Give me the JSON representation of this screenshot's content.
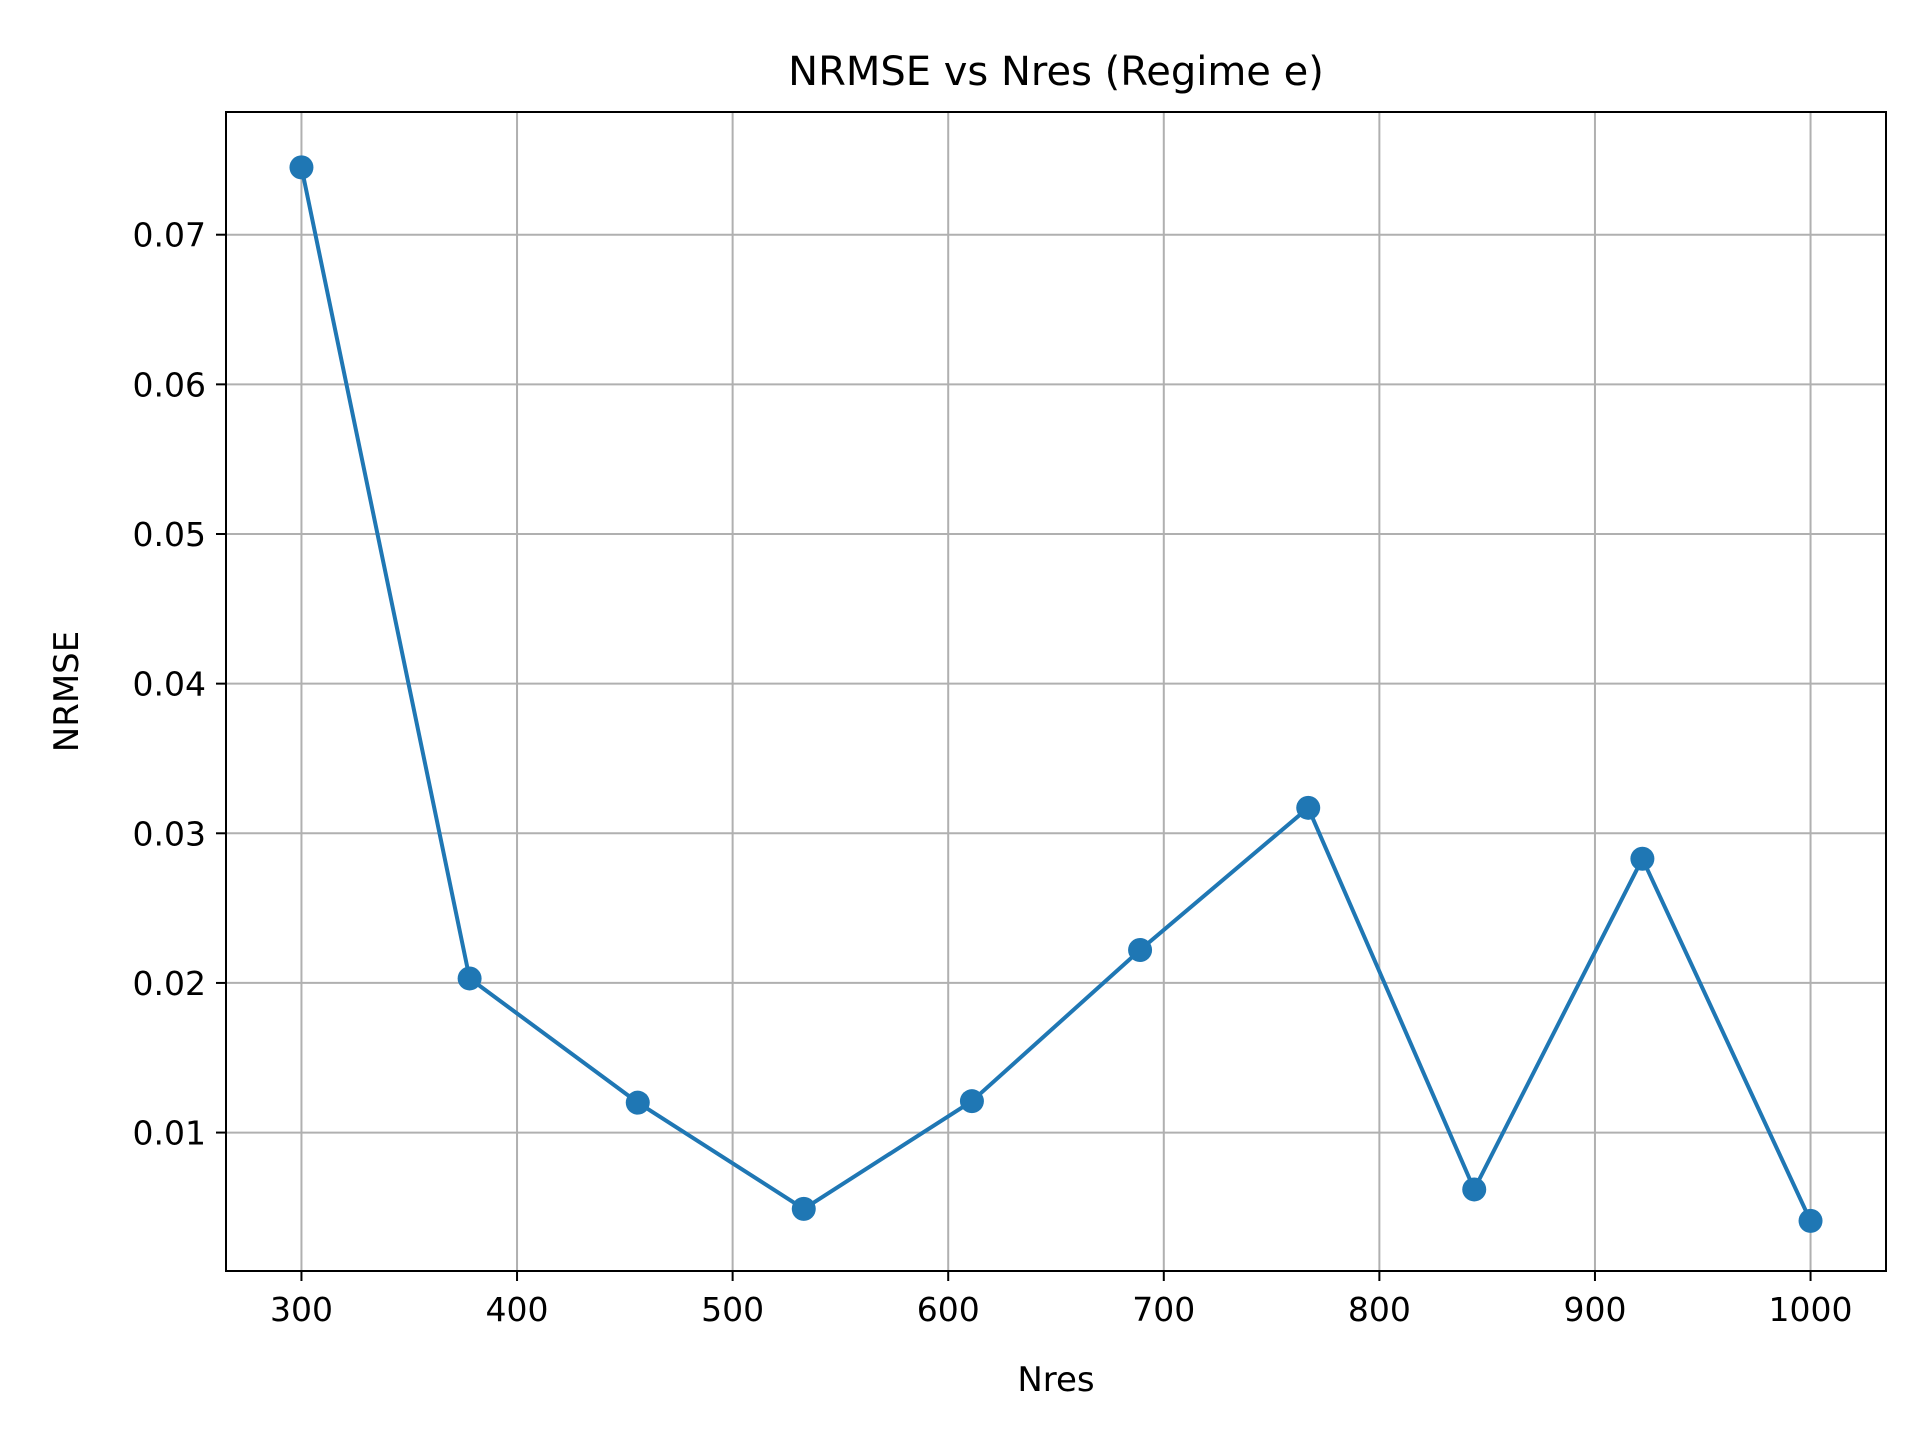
{
  "chart_data": {
    "type": "line",
    "title": "NRMSE vs Nres (Regime e)",
    "xlabel": "Nres",
    "ylabel": "NRMSE",
    "xlim": [
      265,
      1035
    ],
    "ylim": [
      0.00075,
      0.0782
    ],
    "grid": true,
    "x_ticks": [
      300,
      400,
      500,
      600,
      700,
      800,
      900,
      1000
    ],
    "x_tick_labels": [
      "300",
      "400",
      "500",
      "600",
      "700",
      "800",
      "900",
      "1000"
    ],
    "y_ticks": [
      0.01,
      0.02,
      0.03,
      0.04,
      0.05,
      0.06,
      0.07
    ],
    "y_tick_labels": [
      "0.01",
      "0.02",
      "0.03",
      "0.04",
      "0.05",
      "0.06",
      "0.07"
    ],
    "series": [
      {
        "color": "#1f77b4",
        "marker": "circle",
        "x": [
          300,
          378,
          456,
          533,
          611,
          689,
          767,
          844,
          922,
          1000
        ],
        "y": [
          0.0745,
          0.0203,
          0.012,
          0.0049,
          0.0121,
          0.0222,
          0.0317,
          0.0062,
          0.0283,
          0.0041
        ]
      }
    ]
  }
}
